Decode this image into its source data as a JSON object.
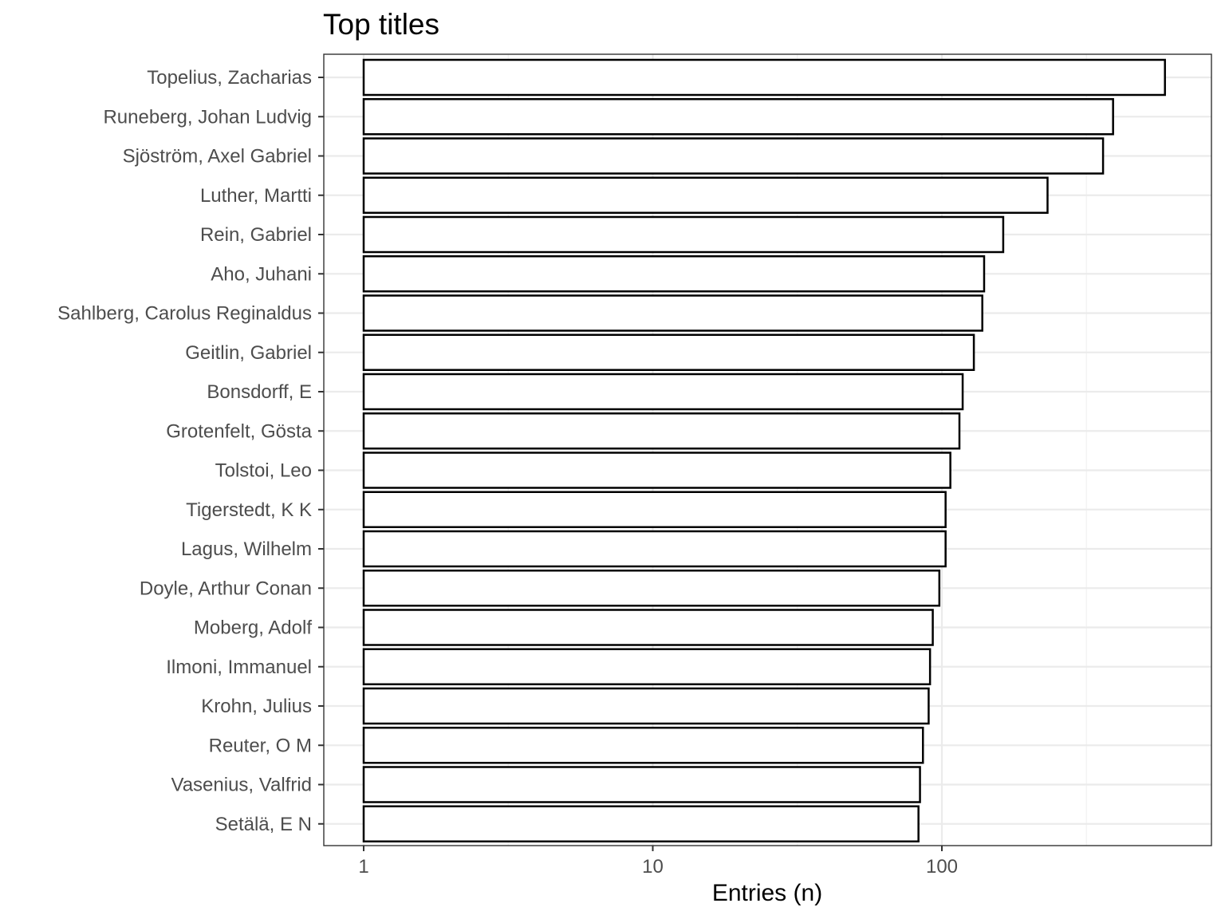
{
  "chart_data": {
    "type": "bar",
    "orientation": "horizontal",
    "title": "Top titles",
    "xlabel": "Entries (n)",
    "ylabel": "",
    "x_scale": "log10",
    "xlim": [
      0.87,
      646
    ],
    "x_ticks": [
      1,
      10,
      100
    ],
    "x_tick_labels": [
      "1",
      "10",
      "100"
    ],
    "grid": true,
    "legend": "none",
    "categories": [
      "Topelius, Zacharias",
      "Runeberg, Johan Ludvig",
      "Sjöström, Axel Gabriel",
      "Luther, Martti",
      "Rein, Gabriel",
      "Aho, Juhani",
      "Sahlberg, Carolus Reginaldus",
      "Geitlin, Gabriel",
      "Bonsdorff, E",
      "Grotenfelt, Gösta",
      "Tolstoi, Leo",
      "Tigerstedt, K K",
      "Lagus, Wilhelm",
      "Doyle, Arthur Conan",
      "Moberg, Adolf",
      "Ilmoni, Immanuel",
      "Krohn, Julius",
      "Reuter, O M",
      "Vasenius, Valfrid",
      "Setälä, E N"
    ],
    "values": [
      591,
      391,
      361,
      232,
      163,
      140,
      138,
      129,
      118,
      115,
      107,
      103,
      103,
      98,
      93,
      91,
      90,
      86,
      84,
      83
    ]
  },
  "colors": {
    "bar_fill": "#ffffff",
    "bar_stroke": "#000000",
    "panel_border": "#333333",
    "grid_major": "#ebebeb",
    "grid_minor": "#f3f3f3",
    "tick_text": "#4d4d4d"
  }
}
